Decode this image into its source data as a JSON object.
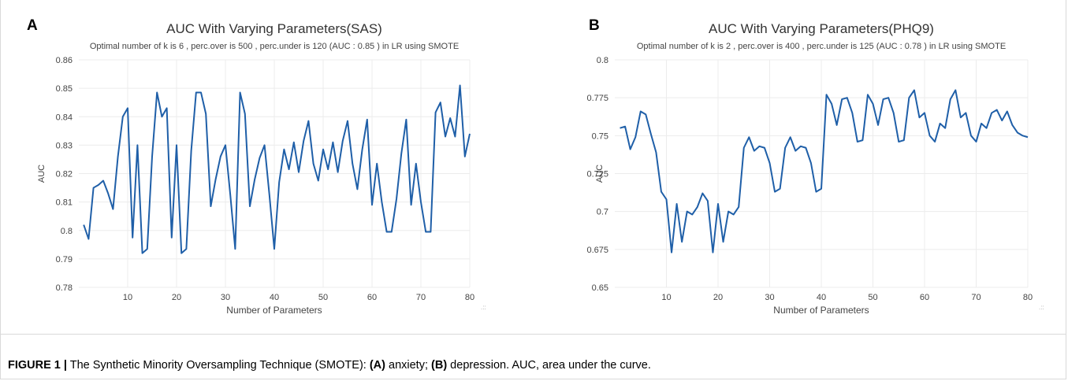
{
  "figure": {
    "caption_label": "FIGURE 1 |",
    "caption_part1": " The Synthetic Minority Oversampling Technique (SMOTE): ",
    "caption_a": "(A)",
    "caption_part2": " anxiety; ",
    "caption_b": "(B)",
    "caption_part3": " depression. AUC, area under the curve."
  },
  "chart_data": [
    {
      "panel": "A",
      "type": "line",
      "title": "AUC With Varying Parameters(SAS)",
      "subtitle": "Optimal number of k is 6 , perc.over is 500 , perc.under is 120 (AUC : 0.85 ) in LR using SMOTE",
      "xlabel": "Number of Parameters",
      "ylabel": "AUC",
      "xlim": [
        0,
        80
      ],
      "ylim": [
        0.78,
        0.86
      ],
      "xticks": [
        10,
        20,
        30,
        40,
        50,
        60,
        70,
        80
      ],
      "yticks": [
        0.78,
        0.79,
        0.8,
        0.81,
        0.82,
        0.83,
        0.84,
        0.85,
        0.86
      ],
      "ytick_labels": [
        "0.78",
        "0.79",
        "0.8",
        "0.81",
        "0.82",
        "0.83",
        "0.84",
        "0.85",
        "0.86"
      ],
      "grid": true,
      "line_color": "#1f5fa8",
      "x": [
        1,
        2,
        3,
        4,
        5,
        6,
        7,
        8,
        9,
        10,
        11,
        12,
        13,
        14,
        15,
        16,
        17,
        18,
        19,
        20,
        21,
        22,
        23,
        24,
        25,
        26,
        27,
        28,
        29,
        30,
        31,
        32,
        33,
        34,
        35,
        36,
        37,
        38,
        39,
        40,
        41,
        42,
        43,
        44,
        45,
        46,
        47,
        48,
        49,
        50,
        51,
        52,
        53,
        54,
        55,
        56,
        57,
        58,
        59,
        60,
        61,
        62,
        63,
        64,
        65,
        66,
        67,
        68,
        69,
        70,
        71,
        72,
        73,
        74,
        75,
        76,
        77,
        78,
        79,
        80
      ],
      "y": [
        0.802,
        0.797,
        0.815,
        0.816,
        0.8175,
        0.813,
        0.8075,
        0.826,
        0.84,
        0.843,
        0.7975,
        0.83,
        0.792,
        0.7935,
        0.826,
        0.8485,
        0.84,
        0.843,
        0.7975,
        0.83,
        0.792,
        0.7935,
        0.828,
        0.8485,
        0.8485,
        0.841,
        0.8085,
        0.818,
        0.826,
        0.83,
        0.8125,
        0.7935,
        0.8485,
        0.841,
        0.8085,
        0.818,
        0.8255,
        0.83,
        0.8125,
        0.7935,
        0.817,
        0.8285,
        0.8215,
        0.831,
        0.8205,
        0.8315,
        0.8385,
        0.8235,
        0.8175,
        0.8285,
        0.8215,
        0.831,
        0.8205,
        0.8315,
        0.8385,
        0.8235,
        0.8145,
        0.8285,
        0.839,
        0.809,
        0.8235,
        0.81,
        0.7995,
        0.7995,
        0.811,
        0.827,
        0.839,
        0.809,
        0.8235,
        0.81,
        0.7995,
        0.7995,
        0.8415,
        0.845,
        0.833,
        0.8395,
        0.833,
        0.851,
        0.826,
        0.834
      ]
    },
    {
      "panel": "B",
      "type": "line",
      "title": "AUC With Varying Parameters(PHQ9)",
      "subtitle": "Optimal number of k is 2 , perc.over is 400 , perc.under is 125 (AUC : 0.78 ) in LR using SMOTE",
      "xlabel": "Number of Parameters",
      "ylabel": "AUC",
      "xlim": [
        0,
        80
      ],
      "ylim": [
        0.65,
        0.8
      ],
      "xticks": [
        10,
        20,
        30,
        40,
        50,
        60,
        70,
        80
      ],
      "yticks": [
        0.65,
        0.675,
        0.7,
        0.725,
        0.75,
        0.775,
        0.8
      ],
      "ytick_labels": [
        "0.65",
        "0.675",
        "0.7",
        "0.725",
        "0.75",
        "0.775",
        "0.8"
      ],
      "grid": true,
      "line_color": "#1f5fa8",
      "x": [
        1,
        2,
        3,
        4,
        5,
        6,
        7,
        8,
        9,
        10,
        11,
        12,
        13,
        14,
        15,
        16,
        17,
        18,
        19,
        20,
        21,
        22,
        23,
        24,
        25,
        26,
        27,
        28,
        29,
        30,
        31,
        32,
        33,
        34,
        35,
        36,
        37,
        38,
        39,
        40,
        41,
        42,
        43,
        44,
        45,
        46,
        47,
        48,
        49,
        50,
        51,
        52,
        53,
        54,
        55,
        56,
        57,
        58,
        59,
        60,
        61,
        62,
        63,
        64,
        65,
        66,
        67,
        68,
        69,
        70,
        71,
        72,
        73,
        74,
        75,
        76,
        77,
        78,
        79,
        80
      ],
      "y": [
        0.755,
        0.756,
        0.741,
        0.749,
        0.766,
        0.764,
        0.751,
        0.739,
        0.713,
        0.708,
        0.673,
        0.705,
        0.68,
        0.7,
        0.698,
        0.703,
        0.712,
        0.707,
        0.673,
        0.705,
        0.68,
        0.7,
        0.698,
        0.703,
        0.742,
        0.749,
        0.74,
        0.743,
        0.742,
        0.732,
        0.713,
        0.715,
        0.742,
        0.749,
        0.74,
        0.743,
        0.742,
        0.732,
        0.713,
        0.715,
        0.777,
        0.771,
        0.757,
        0.774,
        0.775,
        0.765,
        0.746,
        0.747,
        0.777,
        0.771,
        0.757,
        0.774,
        0.775,
        0.765,
        0.746,
        0.747,
        0.775,
        0.78,
        0.762,
        0.765,
        0.75,
        0.746,
        0.758,
        0.755,
        0.774,
        0.78,
        0.762,
        0.765,
        0.75,
        0.746,
        0.758,
        0.755,
        0.765,
        0.767,
        0.76,
        0.766,
        0.757,
        0.752,
        0.75,
        0.749
      ]
    }
  ]
}
